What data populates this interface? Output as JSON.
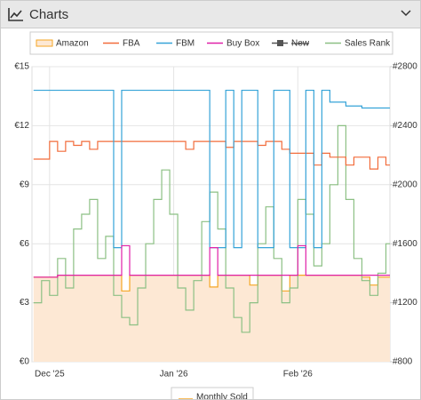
{
  "header": {
    "title": "Charts"
  },
  "chart_data": {
    "type": "line",
    "x": [
      -4,
      -2,
      0,
      2,
      4,
      6,
      8,
      10,
      12,
      14,
      16,
      18,
      20,
      22,
      24,
      26,
      28,
      30,
      32,
      34,
      36,
      38,
      40,
      42,
      44,
      46,
      48,
      50,
      52,
      54,
      56,
      58,
      60,
      62,
      64,
      66,
      68,
      70,
      72,
      74,
      76,
      78,
      80,
      82,
      84
    ],
    "xlim": [
      -4.4,
      85
    ],
    "xticks": [
      {
        "value": 0,
        "label": "Dec '25"
      },
      {
        "value": 31,
        "label": "Jan '26"
      },
      {
        "value": 62,
        "label": "Feb '26"
      }
    ],
    "ylim": [
      0,
      15
    ],
    "yticks": [
      {
        "value": 0,
        "label": "€0"
      },
      {
        "value": 3,
        "label": "€3"
      },
      {
        "value": 6,
        "label": "€6"
      },
      {
        "value": 9,
        "label": "€9"
      },
      {
        "value": 12,
        "label": "€12"
      },
      {
        "value": 15,
        "label": "€15"
      }
    ],
    "y2lim": [
      800,
      2800
    ],
    "y2ticks": [
      {
        "value": 800,
        "label": "#800"
      },
      {
        "value": 1200,
        "label": "#1200"
      },
      {
        "value": 1600,
        "label": "#1600"
      },
      {
        "value": 2000,
        "label": "#2000"
      },
      {
        "value": 2400,
        "label": "#2400"
      },
      {
        "value": 2800,
        "label": "#2800"
      }
    ],
    "grid": true,
    "series": [
      {
        "name": "Amazon",
        "color": "#f5a623",
        "fill": "#fde8d4",
        "values": [
          4.3,
          4.3,
          4.3,
          4.4,
          4.4,
          4.4,
          4.4,
          4.4,
          4.4,
          4.4,
          4.4,
          3.6,
          4.4,
          4.4,
          4.4,
          4.4,
          4.4,
          4.4,
          4.4,
          4.4,
          4.4,
          4.4,
          3.8,
          4.4,
          4.4,
          4.4,
          4.4,
          3.9,
          4.4,
          4.4,
          4.4,
          3.6,
          4.4,
          4.4,
          4.4,
          4.4,
          4.4,
          4.4,
          4.4,
          4.4,
          4.4,
          4.3,
          3.9,
          4.3,
          4.3
        ]
      },
      {
        "name": "FBA",
        "color": "#f26b3a",
        "values": [
          10.3,
          10.3,
          11.2,
          10.7,
          11.2,
          11.0,
          11.2,
          10.8,
          11.2,
          11.2,
          11.2,
          11.2,
          11.2,
          11.2,
          11.2,
          11.2,
          11.2,
          11.2,
          11.2,
          10.8,
          11.2,
          11.2,
          11.2,
          11.2,
          10.9,
          11.2,
          11.2,
          11.2,
          11.0,
          11.2,
          11.2,
          10.8,
          10.6,
          10.6,
          10.6,
          10.0,
          10.6,
          10.4,
          10.4,
          10.0,
          10.4,
          10.4,
          9.8,
          10.4,
          10.0
        ]
      },
      {
        "name": "FBM",
        "color": "#35a3d8",
        "values": [
          13.8,
          13.8,
          13.8,
          13.8,
          13.8,
          13.8,
          13.8,
          13.8,
          13.8,
          13.8,
          5.8,
          13.8,
          13.8,
          13.8,
          13.8,
          13.8,
          13.8,
          13.8,
          13.8,
          13.8,
          13.8,
          13.8,
          5.8,
          5.8,
          13.8,
          5.8,
          13.8,
          13.8,
          5.8,
          5.8,
          13.8,
          13.8,
          5.8,
          5.8,
          13.8,
          5.8,
          13.8,
          13.2,
          13.2,
          13.0,
          13.0,
          12.9,
          12.9,
          12.9,
          12.9
        ]
      },
      {
        "name": "Buy Box",
        "color": "#e020a8",
        "values": [
          4.3,
          4.3,
          4.3,
          4.4,
          4.4,
          4.4,
          4.4,
          4.4,
          4.4,
          4.4,
          4.4,
          5.9,
          4.4,
          4.4,
          4.4,
          4.4,
          4.4,
          4.4,
          4.4,
          4.4,
          4.4,
          4.4,
          5.8,
          4.4,
          4.4,
          4.4,
          4.4,
          4.4,
          4.4,
          4.4,
          4.4,
          4.4,
          4.4,
          5.9,
          4.4,
          4.4,
          4.4,
          4.4,
          4.4,
          4.4,
          4.4,
          4.4,
          4.4,
          4.4,
          4.4
        ]
      },
      {
        "name": "New",
        "color": "#555555",
        "hidden": true
      },
      {
        "name": "Sales Rank",
        "color": "#8cc084",
        "axis": "y2",
        "values": [
          1200,
          1350,
          1250,
          1500,
          1300,
          1700,
          1800,
          1900,
          1500,
          1650,
          1250,
          1100,
          1050,
          1300,
          1600,
          1900,
          2100,
          1800,
          1300,
          1150,
          1350,
          1750,
          1950,
          1700,
          1300,
          1100,
          1000,
          1200,
          1600,
          1850,
          1500,
          1200,
          1300,
          1900,
          1800,
          1450,
          1600,
          2000,
          2400,
          1900,
          1500,
          1350,
          1250,
          1400,
          1600
        ]
      }
    ],
    "bottom_legend": {
      "name": "Monthly Sold",
      "color": "#f5a623"
    }
  }
}
